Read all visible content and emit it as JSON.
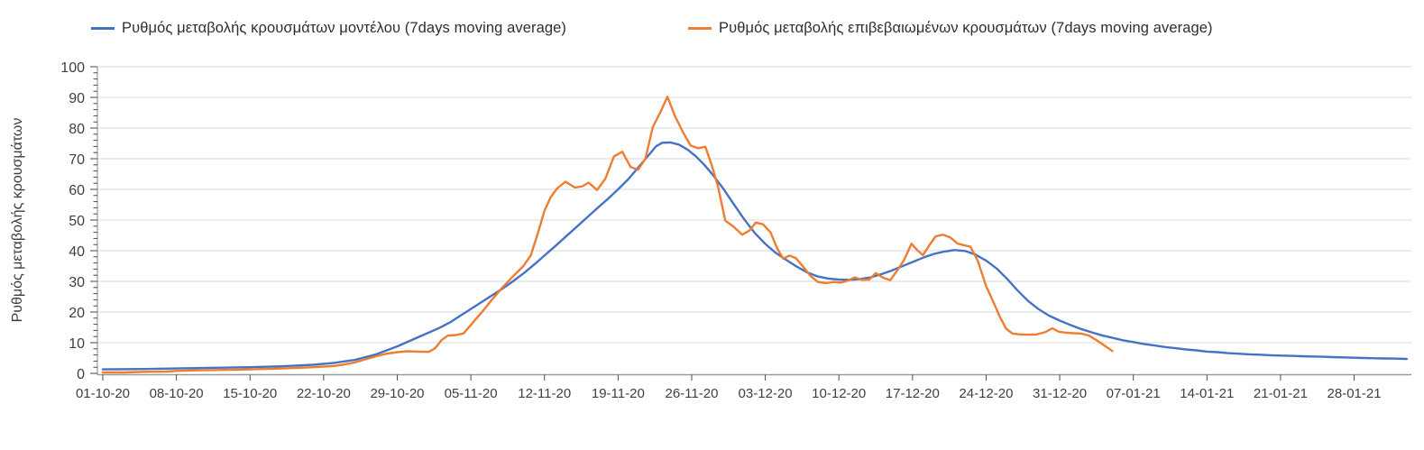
{
  "chart": {
    "legend_position": "top",
    "grid": "horizontal"
  },
  "chart_data": {
    "type": "line",
    "title": "",
    "y_axis_title": "Ρυθμός μεταβολής κρουσμάτων",
    "y_min": 0,
    "y_max": 100,
    "y_tick_step": 10,
    "y_minor_tick_step": 2,
    "y_tick_labels": [
      "0",
      "10",
      "20",
      "30",
      "40",
      "50",
      "60",
      "70",
      "80",
      "90",
      "100"
    ],
    "x_tick_interval_days": 7,
    "x_start_date": "01-10-20",
    "x_tick_labels": [
      "01-10-20",
      "08-10-20",
      "15-10-20",
      "22-10-20",
      "29-10-20",
      "05-11-20",
      "12-11-20",
      "19-11-20",
      "26-11-20",
      "03-12-20",
      "10-12-20",
      "17-12-20",
      "24-12-20",
      "31-12-20",
      "07-01-21",
      "14-01-21",
      "21-01-21",
      "28-01-21"
    ],
    "x_range_days": [
      0,
      124
    ],
    "series": [
      {
        "name": "Ρυθμός μεταβολής κρουσμάτων μοντέλου (7days moving average)",
        "color": "#4472C4",
        "points": [
          [
            0,
            1.3
          ],
          [
            4,
            1.4
          ],
          [
            7,
            1.6
          ],
          [
            10,
            1.8
          ],
          [
            14,
            2.0
          ],
          [
            17,
            2.3
          ],
          [
            20,
            2.8
          ],
          [
            22,
            3.4
          ],
          [
            24,
            4.4
          ],
          [
            26,
            6.2
          ],
          [
            28,
            8.8
          ],
          [
            30,
            11.8
          ],
          [
            32,
            14.8
          ],
          [
            33,
            16.6
          ],
          [
            34,
            18.8
          ],
          [
            35,
            21.0
          ],
          [
            36,
            23.2
          ],
          [
            37,
            25.4
          ],
          [
            38,
            27.6
          ],
          [
            39,
            30.0
          ],
          [
            40,
            32.6
          ],
          [
            41,
            35.4
          ],
          [
            42,
            38.4
          ],
          [
            43,
            41.4
          ],
          [
            44,
            44.5
          ],
          [
            45,
            47.6
          ],
          [
            46,
            50.7
          ],
          [
            47,
            53.8
          ],
          [
            48,
            56.8
          ],
          [
            49,
            60.0
          ],
          [
            50,
            63.4
          ],
          [
            51,
            67.5
          ],
          [
            52,
            71.5
          ],
          [
            52.6,
            74.0
          ],
          [
            53.2,
            75.2
          ],
          [
            54,
            75.3
          ],
          [
            54.8,
            74.6
          ],
          [
            55.6,
            73.0
          ],
          [
            56.4,
            70.8
          ],
          [
            57.2,
            68.0
          ],
          [
            58,
            64.8
          ],
          [
            59,
            60.3
          ],
          [
            60,
            55.2
          ],
          [
            61,
            50.2
          ],
          [
            62,
            45.8
          ],
          [
            63,
            42.2
          ],
          [
            64,
            39.3
          ],
          [
            65,
            37.0
          ],
          [
            66,
            34.8
          ],
          [
            67,
            32.9
          ],
          [
            68,
            31.6
          ],
          [
            69,
            30.9
          ],
          [
            70,
            30.6
          ],
          [
            71,
            30.5
          ],
          [
            72,
            30.7
          ],
          [
            73,
            31.3
          ],
          [
            74,
            32.3
          ],
          [
            75,
            33.5
          ],
          [
            76,
            34.9
          ],
          [
            77,
            36.3
          ],
          [
            78,
            37.7
          ],
          [
            79,
            38.9
          ],
          [
            80,
            39.7
          ],
          [
            81,
            40.2
          ],
          [
            82,
            39.9
          ],
          [
            83,
            38.7
          ],
          [
            84,
            36.8
          ],
          [
            85,
            34.2
          ],
          [
            86,
            30.8
          ],
          [
            87,
            27.0
          ],
          [
            88,
            23.6
          ],
          [
            89,
            20.9
          ],
          [
            90,
            18.8
          ],
          [
            91,
            17.2
          ],
          [
            92,
            15.8
          ],
          [
            93,
            14.5
          ],
          [
            94,
            13.4
          ],
          [
            95,
            12.4
          ],
          [
            96,
            11.6
          ],
          [
            97,
            10.8
          ],
          [
            98,
            10.2
          ],
          [
            99,
            9.6
          ],
          [
            100,
            9.1
          ],
          [
            101,
            8.6
          ],
          [
            102,
            8.2
          ],
          [
            103,
            7.8
          ],
          [
            104,
            7.5
          ],
          [
            105,
            7.1
          ],
          [
            106,
            6.9
          ],
          [
            107,
            6.6
          ],
          [
            108,
            6.4
          ],
          [
            109,
            6.2
          ],
          [
            110,
            6.1
          ],
          [
            111,
            5.9
          ],
          [
            112,
            5.8
          ],
          [
            113,
            5.7
          ],
          [
            114,
            5.6
          ],
          [
            115,
            5.5
          ],
          [
            116,
            5.4
          ],
          [
            117,
            5.3
          ],
          [
            118,
            5.2
          ],
          [
            119,
            5.1
          ],
          [
            120,
            5.0
          ],
          [
            121,
            4.9
          ],
          [
            122,
            4.85
          ],
          [
            123,
            4.8
          ],
          [
            124,
            4.7
          ]
        ]
      },
      {
        "name": "Ρυθμός μεταβολής επιβεβαιωμένων κρουσμάτων (7days moving average)",
        "color": "#ED7D31",
        "points": [
          [
            0,
            0.3
          ],
          [
            2,
            0.3
          ],
          [
            4,
            0.5
          ],
          [
            6,
            0.6
          ],
          [
            7,
            0.8
          ],
          [
            9,
            1.0
          ],
          [
            11,
            1.1
          ],
          [
            13,
            1.2
          ],
          [
            14,
            1.3
          ],
          [
            16,
            1.5
          ],
          [
            18,
            1.7
          ],
          [
            20,
            2.0
          ],
          [
            21,
            2.2
          ],
          [
            22,
            2.4
          ],
          [
            23,
            2.9
          ],
          [
            24,
            3.6
          ],
          [
            25,
            4.6
          ],
          [
            26,
            5.6
          ],
          [
            27,
            6.4
          ],
          [
            28,
            6.9
          ],
          [
            29,
            7.2
          ],
          [
            30,
            7.1
          ],
          [
            31,
            7.0
          ],
          [
            31.6,
            8.2
          ],
          [
            32.2,
            10.8
          ],
          [
            32.8,
            12.3
          ],
          [
            33.6,
            12.5
          ],
          [
            34.3,
            13.0
          ],
          [
            35,
            15.8
          ],
          [
            36,
            19.8
          ],
          [
            37,
            24.0
          ],
          [
            38,
            28.0
          ],
          [
            39,
            31.6
          ],
          [
            40,
            35.0
          ],
          [
            40.7,
            38.5
          ],
          [
            41.4,
            46.0
          ],
          [
            42,
            53.0
          ],
          [
            42.6,
            57.5
          ],
          [
            43.2,
            60.3
          ],
          [
            44,
            62.5
          ],
          [
            44.9,
            60.6
          ],
          [
            45.6,
            61.0
          ],
          [
            46.2,
            62.2
          ],
          [
            47,
            59.8
          ],
          [
            47.8,
            63.5
          ],
          [
            48.6,
            70.7
          ],
          [
            49.4,
            72.3
          ],
          [
            50.2,
            67.3
          ],
          [
            50.9,
            66.4
          ],
          [
            51.6,
            70.0
          ],
          [
            52.3,
            80.3
          ],
          [
            53,
            85.0
          ],
          [
            53.7,
            90.2
          ],
          [
            54.4,
            84.0
          ],
          [
            55.2,
            78.5
          ],
          [
            55.9,
            74.3
          ],
          [
            56.6,
            73.4
          ],
          [
            57.3,
            73.9
          ],
          [
            57.9,
            68.0
          ],
          [
            58.5,
            61.0
          ],
          [
            59.2,
            49.8
          ],
          [
            60,
            47.8
          ],
          [
            60.8,
            45.2
          ],
          [
            61.5,
            46.6
          ],
          [
            62.1,
            49.2
          ],
          [
            62.8,
            48.6
          ],
          [
            63.5,
            46.0
          ],
          [
            64.1,
            41.0
          ],
          [
            64.7,
            37.4
          ],
          [
            65.3,
            38.4
          ],
          [
            65.9,
            37.6
          ],
          [
            66.6,
            34.8
          ],
          [
            67.3,
            31.8
          ],
          [
            68,
            29.8
          ],
          [
            68.8,
            29.4
          ],
          [
            69.5,
            29.8
          ],
          [
            70.2,
            29.6
          ],
          [
            70.9,
            30.3
          ],
          [
            71.5,
            31.3
          ],
          [
            72.2,
            30.5
          ],
          [
            72.9,
            30.6
          ],
          [
            73.5,
            32.7
          ],
          [
            74.2,
            31.2
          ],
          [
            74.9,
            30.4
          ],
          [
            75.6,
            33.8
          ],
          [
            76.2,
            37.0
          ],
          [
            76.9,
            42.3
          ],
          [
            77.5,
            40.0
          ],
          [
            78,
            38.6
          ],
          [
            78.6,
            41.8
          ],
          [
            79.2,
            44.7
          ],
          [
            79.9,
            45.2
          ],
          [
            80.6,
            44.3
          ],
          [
            81.3,
            42.3
          ],
          [
            82,
            41.7
          ],
          [
            82.5,
            41.3
          ],
          [
            83.2,
            36.8
          ],
          [
            84,
            28.5
          ],
          [
            84.6,
            24.0
          ],
          [
            85.3,
            18.5
          ],
          [
            85.9,
            14.6
          ],
          [
            86.5,
            13.0
          ],
          [
            87.2,
            12.7
          ],
          [
            88,
            12.6
          ],
          [
            88.8,
            12.7
          ],
          [
            89.6,
            13.4
          ],
          [
            90.3,
            14.7
          ],
          [
            90.9,
            13.6
          ],
          [
            91.5,
            13.3
          ],
          [
            92.3,
            13.1
          ],
          [
            93,
            13.0
          ],
          [
            93.8,
            12.3
          ],
          [
            94.5,
            10.8
          ],
          [
            95.2,
            9.2
          ],
          [
            96,
            7.3
          ]
        ]
      }
    ]
  }
}
